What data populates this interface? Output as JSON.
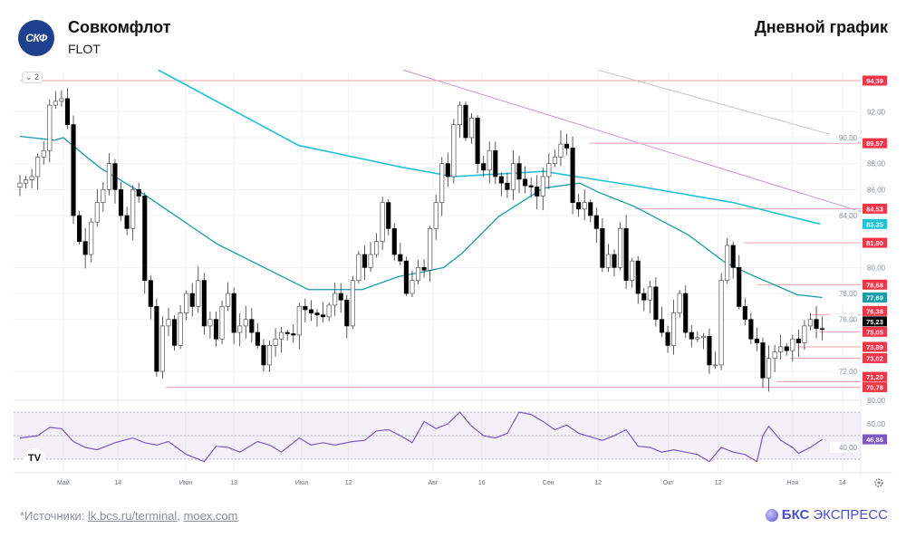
{
  "header": {
    "logo_text": "СКФ",
    "company": "Совкомфлот",
    "ticker": "FLOT",
    "chart_title": "Дневной график"
  },
  "controls": {
    "collapse_label": "⌄ 2",
    "tv_logo": "TV",
    "settings_icon": "gear-icon"
  },
  "footer": {
    "prefix": "*Источники: ",
    "link1": "lk.bcs.ru/terminal",
    "sep": ", ",
    "link2": "moex.com",
    "brand_bold": "БКС",
    "brand_rest": " ЭКСПРЕСС"
  },
  "colors": {
    "up": "#ffffff",
    "down": "#000000",
    "level": "#f23645",
    "ma_long": "#22c1d6",
    "ma_short": "#1a9ba8",
    "rsi": "#7e57c2",
    "trend1": "#ce93d8",
    "trend2": "#c8c8c8"
  },
  "chart_data": {
    "type": "candlestick",
    "title": "Дневной график",
    "ylim": [
      69.6,
      95.2
    ],
    "y_ticks": [
      "92,00",
      "90,00",
      "88,00",
      "86,00",
      "84,00",
      "80,00",
      "78,00",
      "76,00",
      "72,00"
    ],
    "y_tick_values": [
      92,
      90,
      88,
      86,
      84,
      80,
      78,
      76,
      72
    ],
    "x_ticks": [
      {
        "day": 7.3,
        "label": "Май"
      },
      {
        "day": 16.5,
        "label": "14"
      },
      {
        "day": 27.9,
        "label": "Июн"
      },
      {
        "day": 36,
        "label": "13"
      },
      {
        "day": 47.4,
        "label": "Июл"
      },
      {
        "day": 55.3,
        "label": "12"
      },
      {
        "day": 69.5,
        "label": "Авг"
      },
      {
        "day": 77.7,
        "label": "16"
      },
      {
        "day": 88.9,
        "label": "Сен"
      },
      {
        "day": 97.3,
        "label": "12"
      },
      {
        "day": 109.1,
        "label": "Окт"
      },
      {
        "day": 117.5,
        "label": "12"
      },
      {
        "day": 130,
        "label": "Ноя"
      },
      {
        "day": 138.4,
        "label": "14"
      }
    ],
    "price_path": [
      [
        0,
        86.5
      ],
      [
        2,
        87
      ],
      [
        3,
        88.5
      ],
      [
        4,
        89
      ],
      [
        5,
        92.5
      ],
      [
        5.5,
        93.5
      ],
      [
        6,
        92.8
      ],
      [
        7,
        93
      ],
      [
        8,
        91
      ],
      [
        8.5,
        88
      ],
      [
        9,
        84
      ],
      [
        10,
        82
      ],
      [
        11,
        81
      ],
      [
        12,
        83.5
      ],
      [
        13,
        85
      ],
      [
        14,
        86
      ],
      [
        15,
        88
      ],
      [
        16,
        86
      ],
      [
        17,
        84
      ],
      [
        18,
        83
      ],
      [
        19,
        86
      ],
      [
        20,
        85.5
      ],
      [
        21,
        79
      ],
      [
        22,
        77
      ],
      [
        23,
        72
      ],
      [
        24,
        75.5
      ],
      [
        25,
        76
      ],
      [
        26,
        74
      ],
      [
        27,
        76.5
      ],
      [
        28,
        78
      ],
      [
        29,
        77
      ],
      [
        30,
        79
      ],
      [
        31,
        75.5
      ],
      [
        32,
        76
      ],
      [
        33,
        74.5
      ],
      [
        34,
        77
      ],
      [
        35,
        78
      ],
      [
        36,
        75
      ],
      [
        38,
        76
      ],
      [
        40,
        74
      ],
      [
        41,
        72.5
      ],
      [
        42,
        74
      ],
      [
        44,
        75
      ],
      [
        46,
        74.8
      ],
      [
        47,
        77
      ],
      [
        49,
        76.5
      ],
      [
        51,
        76.2
      ],
      [
        53,
        78
      ],
      [
        54,
        77.5
      ],
      [
        55,
        75.5
      ],
      [
        56,
        79
      ],
      [
        57,
        81
      ],
      [
        58,
        80
      ],
      [
        59,
        81
      ],
      [
        60,
        82
      ],
      [
        61,
        85
      ],
      [
        62,
        83
      ],
      [
        63,
        81
      ],
      [
        64,
        80.5
      ],
      [
        65,
        78
      ],
      [
        66,
        79
      ],
      [
        67,
        80
      ],
      [
        68,
        79.8
      ],
      [
        69,
        83
      ],
      [
        70,
        85
      ],
      [
        71,
        88
      ],
      [
        72,
        87
      ],
      [
        73,
        91
      ],
      [
        74,
        92.5
      ],
      [
        75,
        90
      ],
      [
        76,
        91.5
      ],
      [
        77,
        88
      ],
      [
        78,
        87.5
      ],
      [
        79,
        89
      ],
      [
        80,
        87
      ],
      [
        81,
        86.5
      ],
      [
        82,
        86
      ],
      [
        83,
        88
      ],
      [
        84,
        86.8
      ],
      [
        85,
        86.3
      ],
      [
        86,
        86.2
      ],
      [
        87,
        85.5
      ],
      [
        88,
        87
      ],
      [
        89,
        88
      ],
      [
        90,
        88.5
      ],
      [
        91,
        89.5
      ],
      [
        92,
        89.2
      ],
      [
        93,
        85
      ],
      [
        94,
        84.5
      ],
      [
        95,
        85
      ],
      [
        96,
        84
      ],
      [
        97,
        83
      ],
      [
        98,
        80
      ],
      [
        99,
        81
      ],
      [
        100,
        80
      ],
      [
        101,
        83
      ],
      [
        102,
        79
      ],
      [
        103,
        80.5
      ],
      [
        104,
        78
      ],
      [
        105,
        77.5
      ],
      [
        106,
        78.5
      ],
      [
        107,
        76
      ],
      [
        108,
        75
      ],
      [
        109,
        74
      ],
      [
        110,
        76.5
      ],
      [
        111,
        78
      ],
      [
        112,
        75
      ],
      [
        113,
        74.5
      ],
      [
        114,
        74.6
      ],
      [
        115,
        74.7
      ],
      [
        116,
        72.5
      ],
      [
        117,
        72.5
      ],
      [
        118,
        79
      ],
      [
        119,
        81.7
      ],
      [
        120,
        80
      ],
      [
        121,
        77
      ],
      [
        122,
        76
      ],
      [
        123,
        74.5
      ],
      [
        124,
        74.2
      ],
      [
        125,
        71.5
      ],
      [
        126,
        73
      ],
      [
        127,
        73.5
      ],
      [
        128,
        73.9
      ],
      [
        129,
        73.6
      ],
      [
        130,
        74.5
      ],
      [
        131,
        74.2
      ],
      [
        132,
        75.5
      ],
      [
        133,
        76
      ],
      [
        134,
        75.3
      ],
      [
        135,
        75.23
      ]
    ],
    "ma_short": [
      [
        0,
        90.1
      ],
      [
        5.8,
        89.8
      ],
      [
        7.3,
        90
      ],
      [
        13.4,
        87.7
      ],
      [
        21,
        85.6
      ],
      [
        33.2,
        81.8
      ],
      [
        42.4,
        79.7
      ],
      [
        48.5,
        78.3
      ],
      [
        57.6,
        78.3
      ],
      [
        63.7,
        79.3
      ],
      [
        68.3,
        79.7
      ],
      [
        71.3,
        80
      ],
      [
        74.4,
        81.1
      ],
      [
        80.5,
        83.9
      ],
      [
        88,
        86.1
      ],
      [
        94.2,
        86.5
      ],
      [
        97.3,
        85.8
      ],
      [
        103.4,
        84.7
      ],
      [
        112.5,
        82.5
      ],
      [
        118.6,
        80.4
      ],
      [
        123.2,
        79.4
      ],
      [
        130.8,
        77.9
      ],
      [
        135,
        77.69
      ]
    ],
    "ma_long": [
      [
        23.3,
        95.2
      ],
      [
        46.9,
        89.4
      ],
      [
        64.5,
        87.7
      ],
      [
        72.9,
        87
      ],
      [
        88.1,
        87.4
      ],
      [
        103.4,
        86.3
      ],
      [
        120,
        85
      ],
      [
        134.6,
        83.35
      ]
    ],
    "trend_lines": [
      {
        "name": "trend-line-purple",
        "from": [
          64.5,
          95.2
        ],
        "to": [
          141.5,
          84.3
        ],
        "color": "#ce93d8"
      },
      {
        "name": "trend-line-gray",
        "from": [
          97.3,
          95.2
        ],
        "to": [
          141.5,
          89.6
        ],
        "color": "#c8c8c8"
      }
    ],
    "levels": [
      {
        "value": 94.39,
        "label": "94,39",
        "start": 0
      },
      {
        "value": 89.57,
        "label": "89,57",
        "start": 95.7
      },
      {
        "value": 84.53,
        "label": "84,53",
        "start": 103.4
      },
      {
        "value": 81.9,
        "label": "81,90",
        "start": 121.7
      },
      {
        "value": 78.68,
        "label": "78,68",
        "start": 124
      },
      {
        "value": 76.38,
        "label": "76,38",
        "start": 133
      },
      {
        "value": 75.05,
        "label": "75,05",
        "start": 134.6
      },
      {
        "value": 73.89,
        "label": "73,89",
        "start": 130.8
      },
      {
        "value": 73.02,
        "label": "73,02",
        "start": 129.6
      },
      {
        "value": 71.2,
        "label": "71,20",
        "start": 127.3
      },
      {
        "value": 70.78,
        "label": "70,78",
        "start": 24.5
      }
    ],
    "badges": [
      {
        "value": 83.35,
        "label": "83,35",
        "color": "#22c1d6"
      },
      {
        "value": 77.69,
        "label": "77,69",
        "color": "#1a9ba8"
      },
      {
        "value": 75.23,
        "label": "75,23",
        "color": "#000000"
      }
    ],
    "rsi": {
      "ticks": [
        "80,00",
        "60,00",
        "40,00"
      ],
      "tick_values": [
        80,
        60,
        40
      ],
      "bands": [
        70,
        50,
        30
      ],
      "current": 46.86,
      "current_label": "46,86",
      "path": [
        [
          0,
          48
        ],
        [
          3,
          50
        ],
        [
          5,
          57
        ],
        [
          7,
          56
        ],
        [
          9,
          45
        ],
        [
          11,
          40
        ],
        [
          13,
          38
        ],
        [
          16,
          44
        ],
        [
          19,
          48
        ],
        [
          21,
          44
        ],
        [
          23,
          42
        ],
        [
          25,
          45
        ],
        [
          28,
          34
        ],
        [
          31,
          28
        ],
        [
          33,
          41
        ],
        [
          35,
          40
        ],
        [
          37,
          36
        ],
        [
          40,
          45
        ],
        [
          42,
          42
        ],
        [
          44,
          36
        ],
        [
          47,
          48
        ],
        [
          49,
          42
        ],
        [
          51,
          44
        ],
        [
          53,
          42
        ],
        [
          56,
          45
        ],
        [
          58,
          46
        ],
        [
          60,
          54
        ],
        [
          62,
          55
        ],
        [
          64,
          50
        ],
        [
          66,
          44
        ],
        [
          68,
          62
        ],
        [
          70,
          56
        ],
        [
          72,
          60
        ],
        [
          74,
          70
        ],
        [
          76,
          58
        ],
        [
          78,
          50
        ],
        [
          80,
          48
        ],
        [
          82,
          52
        ],
        [
          84,
          70
        ],
        [
          86,
          68
        ],
        [
          88,
          62
        ],
        [
          90,
          55
        ],
        [
          92,
          59
        ],
        [
          94,
          52
        ],
        [
          96,
          49
        ],
        [
          98,
          46
        ],
        [
          100,
          50
        ],
        [
          102,
          55
        ],
        [
          104,
          41
        ],
        [
          106,
          40
        ],
        [
          108,
          36
        ],
        [
          110,
          38
        ],
        [
          112,
          36
        ],
        [
          114,
          34
        ],
        [
          116,
          28
        ],
        [
          118,
          40
        ],
        [
          120,
          36
        ],
        [
          122,
          34
        ],
        [
          124,
          28
        ],
        [
          125,
          50
        ],
        [
          126,
          58
        ],
        [
          128,
          46
        ],
        [
          130,
          40
        ],
        [
          131,
          35
        ],
        [
          133,
          40
        ],
        [
          135,
          46.86
        ]
      ]
    }
  }
}
